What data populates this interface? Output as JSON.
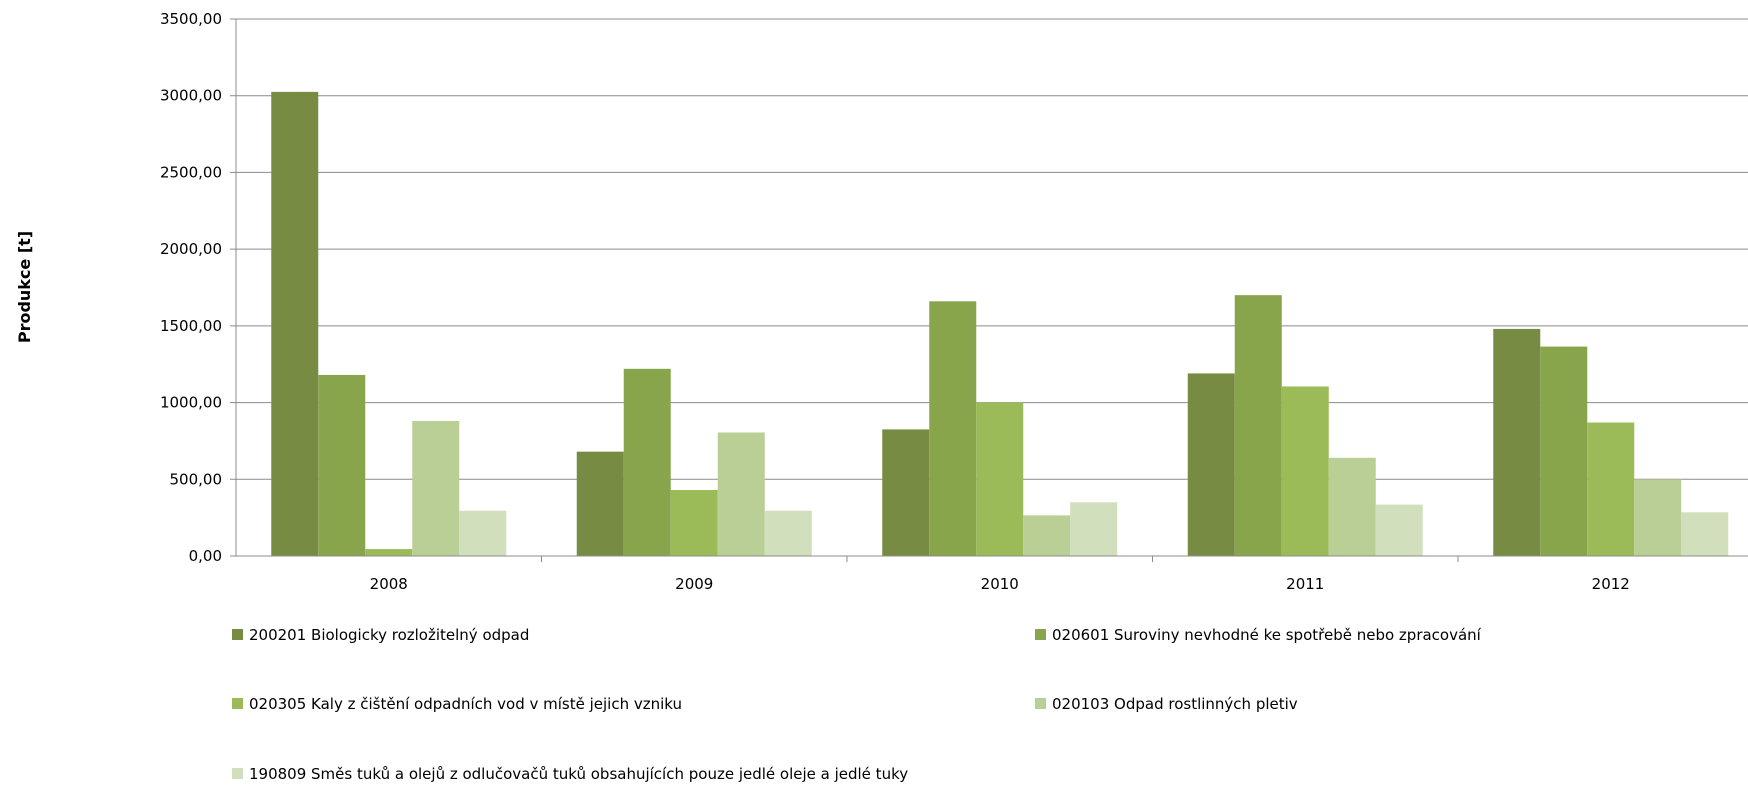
{
  "chart_data": {
    "type": "bar",
    "title": "",
    "xlabel": "",
    "ylabel": "Produkce [t]",
    "ylim": [
      0,
      3500
    ],
    "yticks": [
      "0,00",
      "500,00",
      "1000,00",
      "1500,00",
      "2000,00",
      "2500,00",
      "3000,00",
      "3500,00"
    ],
    "ytick_values": [
      0,
      500,
      1000,
      1500,
      2000,
      2500,
      3000,
      3500
    ],
    "grid": true,
    "legend_position": "bottom",
    "categories": [
      "2008",
      "2009",
      "2010",
      "2011",
      "2012"
    ],
    "series": [
      {
        "name": "200201 Biologicky rozložitelný odpad",
        "color": "#778c42",
        "values": [
          3025,
          680,
          825,
          1190,
          1480
        ]
      },
      {
        "name": "020601 Suroviny nevhodné ke spotřebě nebo zpracování",
        "color": "#88a54c",
        "values": [
          1180,
          1220,
          1660,
          1700,
          1365
        ]
      },
      {
        "name": "020305 Kaly z čištění odpadních vod v místě jejich vzniku",
        "color": "#9bbb59",
        "values": [
          45,
          430,
          1000,
          1105,
          870
        ]
      },
      {
        "name": "020103 Odpad rostlinných pletiv",
        "color": "#b9cf95",
        "values": [
          880,
          805,
          265,
          640,
          500
        ]
      },
      {
        "name": "190809 Směs tuků a olejů z odlučovačů tuků obsahujících pouze jedlé oleje a jedlé tuky",
        "color": "#d1dfbc",
        "values": [
          295,
          295,
          350,
          335,
          285
        ]
      }
    ]
  }
}
